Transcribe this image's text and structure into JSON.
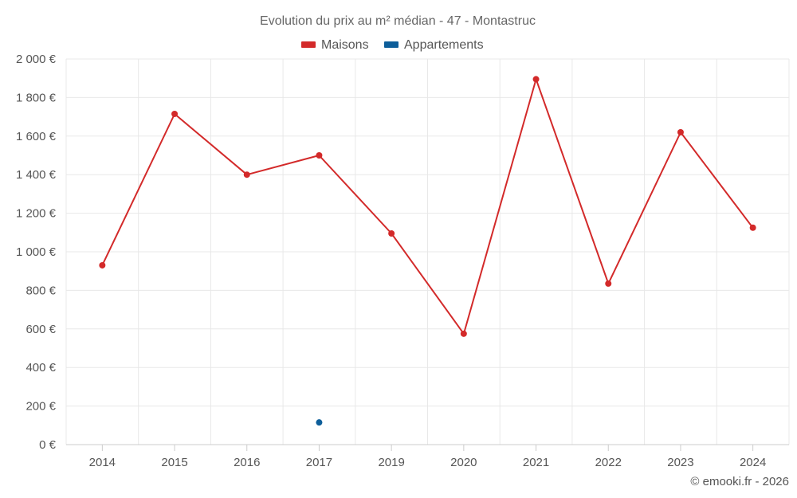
{
  "chart_data": {
    "type": "line",
    "title": "Evolution du prix au m² médian - 47 - Montastruc",
    "categories": [
      "2014",
      "2015",
      "2016",
      "2017",
      "2019",
      "2020",
      "2021",
      "2022",
      "2023",
      "2024"
    ],
    "series": [
      {
        "name": "Maisons",
        "color": "#d32a2a",
        "values": [
          930,
          1715,
          1400,
          1500,
          1095,
          575,
          1895,
          835,
          1620,
          1125
        ]
      },
      {
        "name": "Appartements",
        "color": "#0d5e9a",
        "values": [
          null,
          null,
          null,
          115,
          null,
          null,
          null,
          null,
          null,
          null
        ]
      }
    ],
    "yticks": [
      "0 €",
      "200 €",
      "400 €",
      "600 €",
      "800 €",
      "1 000 €",
      "1 200 €",
      "1 400 €",
      "1 600 €",
      "1 800 €",
      "2 000 €"
    ],
    "ylim": [
      0,
      2000
    ],
    "grid": true,
    "legend_position": "top-center",
    "credit": "© emooki.fr - 2026"
  }
}
